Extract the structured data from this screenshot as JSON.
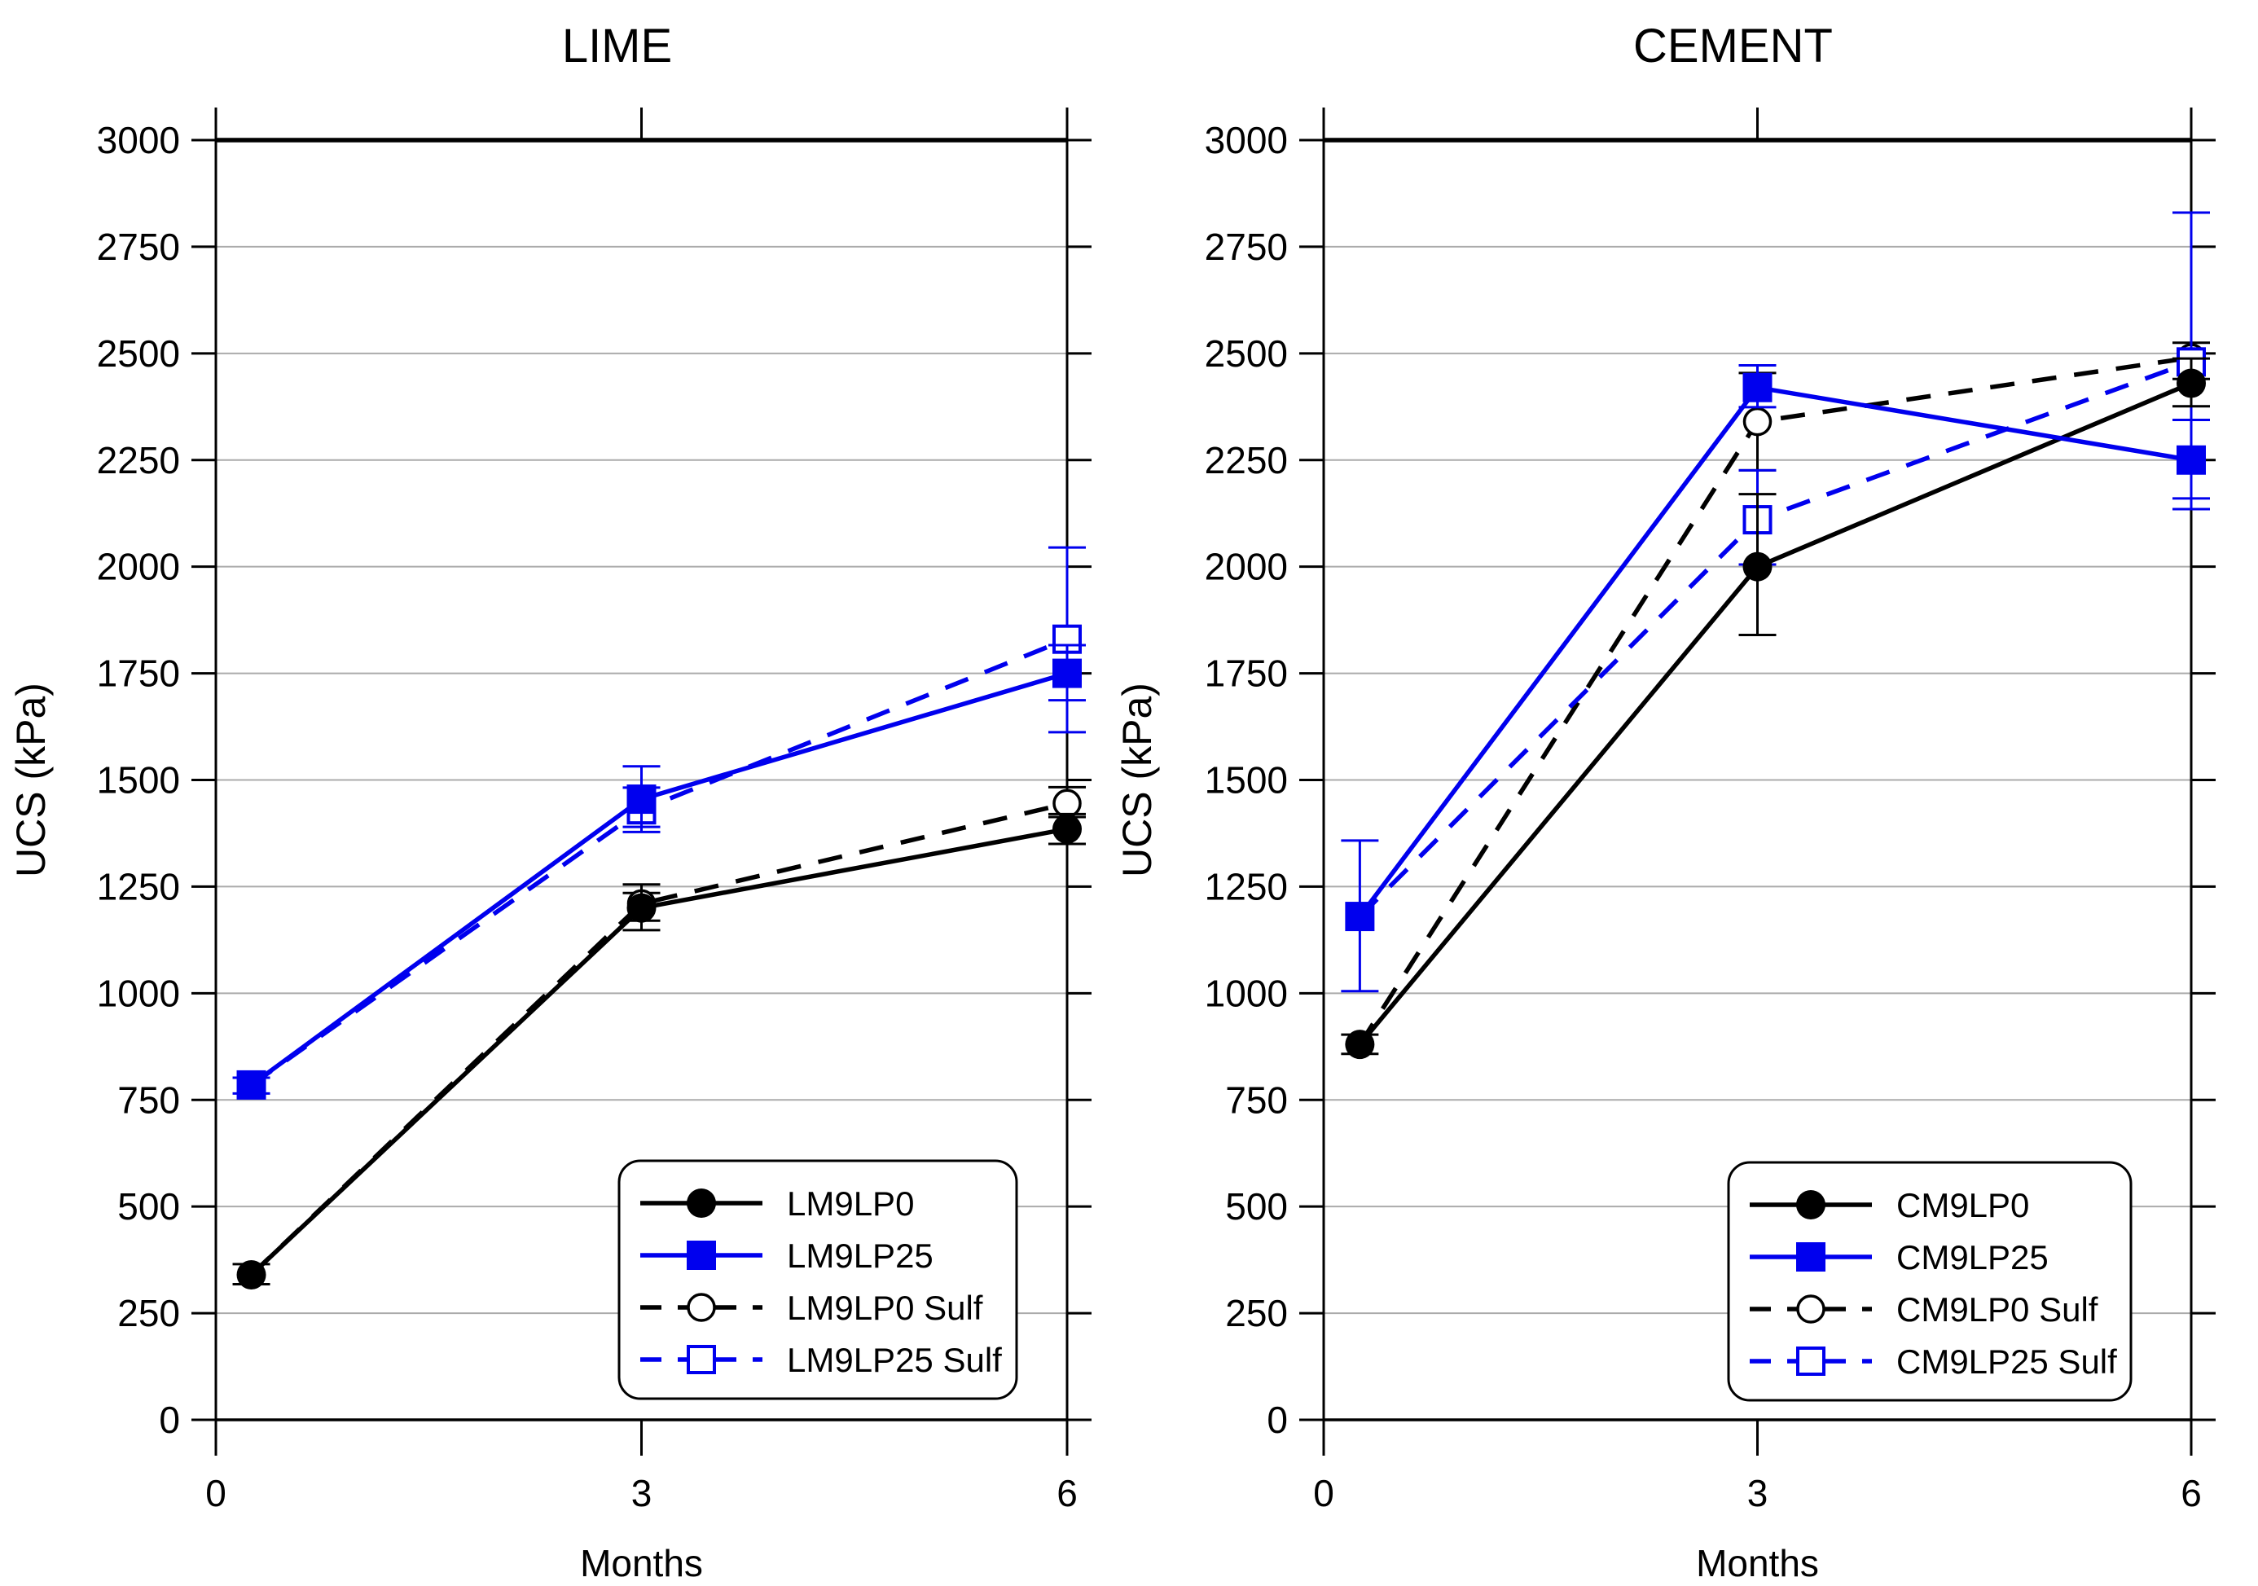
{
  "figure": {
    "background": "#ffffff",
    "accent_blue": "#0000ee",
    "accent_black": "#000000",
    "gridline_color": "#ababab"
  },
  "chart_data": [
    {
      "type": "line",
      "title": "LIME",
      "xlabel": "Months",
      "ylabel": "UCS (kPa)",
      "xlim": [
        0,
        6
      ],
      "ylim": [
        0,
        3000
      ],
      "xticks": [
        0,
        3,
        6
      ],
      "ytick_step": 250,
      "grid": true,
      "legend_position": "lower right",
      "series": [
        {
          "name": "LM9LP0",
          "color": "#000000",
          "line_style": "solid",
          "marker": "filled-circle",
          "x": [
            0.25,
            3,
            6
          ],
          "y": [
            340,
            1200,
            1385
          ],
          "err": [
            [
              318,
              365
            ],
            [
              1148,
              1255
            ],
            [
              1350,
              1420
            ]
          ],
          "marker_mask": [
            true,
            true,
            true
          ]
        },
        {
          "name": "LM9LP25",
          "color": "#0000ee",
          "line_style": "solid",
          "marker": "filled-square",
          "x": [
            0.25,
            3,
            6
          ],
          "y": [
            785,
            1455,
            1750
          ],
          "err": [
            [
              765,
              802
            ],
            [
              1390,
              1532
            ],
            [
              1687,
              1816
            ]
          ],
          "marker_mask": [
            true,
            true,
            true
          ]
        },
        {
          "name": "LM9LP0 Sulf",
          "color": "#000000",
          "line_style": "dashed",
          "marker": "open-circle",
          "x": [
            0.25,
            3,
            6
          ],
          "y": [
            340,
            1210,
            1445
          ],
          "err": [
            null,
            [
              1170,
              1235
            ],
            [
              1413,
              1483
            ]
          ],
          "marker_mask": [
            false,
            true,
            true
          ]
        },
        {
          "name": "LM9LP25 Sulf",
          "color": "#0000ee",
          "line_style": "dashed",
          "marker": "open-square",
          "x": [
            0.25,
            3,
            6
          ],
          "y": [
            785,
            1430,
            1830
          ],
          "err": [
            null,
            [
              1378,
              1482
            ],
            [
              1612,
              2045
            ]
          ],
          "marker_mask": [
            false,
            true,
            true
          ]
        }
      ]
    },
    {
      "type": "line",
      "title": "CEMENT",
      "xlabel": "Months",
      "ylabel": "UCS (kPa)",
      "xlim": [
        0,
        6
      ],
      "ylim": [
        0,
        3000
      ],
      "xticks": [
        0,
        3,
        6
      ],
      "ytick_step": 250,
      "grid": true,
      "legend_position": "lower right",
      "series": [
        {
          "name": "CM9LP0",
          "color": "#000000",
          "line_style": "solid",
          "marker": "filled-circle",
          "x": [
            0.25,
            3,
            6
          ],
          "y": [
            880,
            2000,
            2430
          ],
          "err": [
            [
              858,
              903
            ],
            [
              1840,
              2170
            ],
            [
              2376,
              2488
            ]
          ],
          "marker_mask": [
            true,
            true,
            true
          ]
        },
        {
          "name": "CM9LP25",
          "color": "#0000ee",
          "line_style": "solid",
          "marker": "filled-square",
          "x": [
            0.25,
            3,
            6
          ],
          "y": [
            1180,
            2420,
            2250
          ],
          "err": [
            [
              1005,
              1358
            ],
            [
              2374,
              2472
            ],
            [
              2160,
              2344
            ]
          ],
          "marker_mask": [
            true,
            true,
            true
          ]
        },
        {
          "name": "CM9LP0 Sulf",
          "color": "#000000",
          "line_style": "dashed",
          "marker": "open-circle",
          "x": [
            0.25,
            3,
            6
          ],
          "y": [
            880,
            2340,
            2490
          ],
          "err": [
            null,
            [
              2226,
              2454
            ],
            [
              2440,
              2525
            ]
          ],
          "marker_mask": [
            false,
            true,
            true
          ]
        },
        {
          "name": "CM9LP25 Sulf",
          "color": "#0000ee",
          "line_style": "dashed",
          "marker": "open-square",
          "x": [
            0.25,
            3,
            6
          ],
          "y": [
            1180,
            2110,
            2480
          ],
          "err": [
            null,
            [
              2005,
              2226
            ],
            [
              2135,
              2830
            ]
          ],
          "marker_mask": [
            false,
            true,
            true
          ]
        }
      ]
    }
  ]
}
